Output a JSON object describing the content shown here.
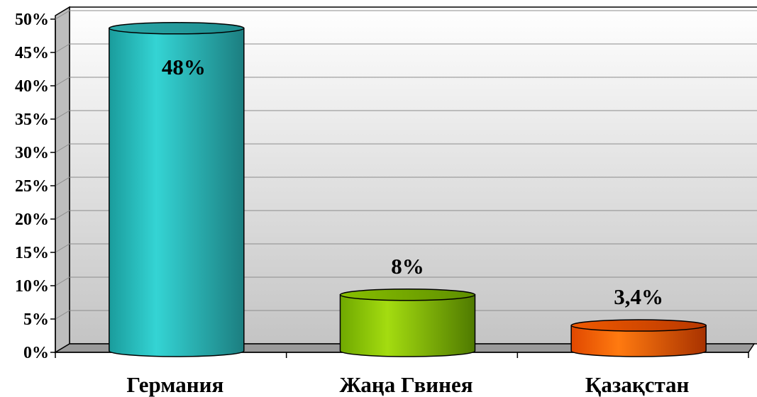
{
  "chart_data": {
    "type": "bar",
    "style": "3d-cylinder",
    "categories": [
      "Германия",
      "Жаңа Гвинея",
      "Қазақстан"
    ],
    "values": [
      48,
      8,
      3.4
    ],
    "data_labels": [
      "48%",
      "8%",
      "3,4%"
    ],
    "ylim": [
      0,
      50
    ],
    "yticks": [
      0,
      5,
      10,
      15,
      20,
      25,
      30,
      35,
      40,
      45,
      50
    ],
    "ytick_labels": [
      "0%",
      "5%",
      "10%",
      "15%",
      "20%",
      "25%",
      "30%",
      "35%",
      "40%",
      "45%",
      "50%"
    ],
    "grid": true,
    "legend": "none",
    "colors": [
      "#2ec8c8",
      "#8ec800",
      "#ff6a00"
    ]
  }
}
